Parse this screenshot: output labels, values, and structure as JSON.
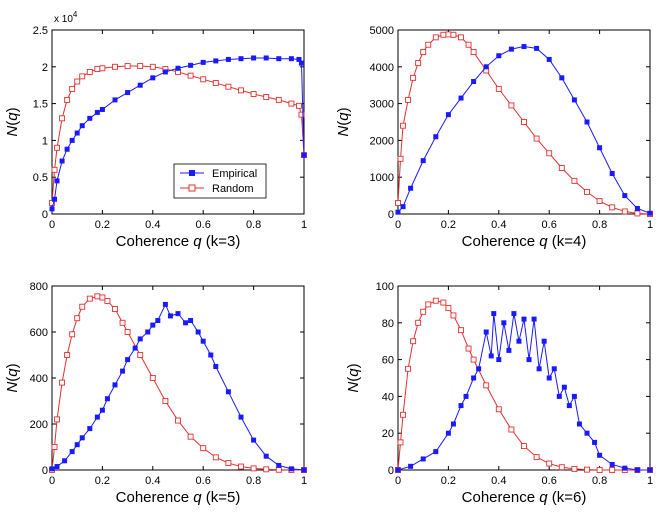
{
  "chart_data": [
    {
      "type": "line",
      "id": "k3",
      "xlabel_prefix": "Coherence ",
      "xlabel_var": "q",
      "xlabel_suffix": " (k=3)",
      "ylabel_prefix": "N(",
      "ylabel_var": "q",
      "ylabel_suffix": ")",
      "xlim": [
        0,
        1
      ],
      "ylim": [
        0,
        2.5
      ],
      "xticks": [
        "0",
        "0.2",
        "0.4",
        "0.6",
        "0.8",
        "1"
      ],
      "yticks": [
        "0",
        "0.5",
        "1",
        "1.5",
        "2",
        "2.5"
      ],
      "yscale_label_base": "x 10",
      "yscale_label_exp": "4",
      "legend": {
        "position": "bottom-right",
        "entries": [
          "Empirical",
          "Random"
        ]
      },
      "series": [
        {
          "name": "Empirical",
          "color": "#1a1aff",
          "marker": "filled-square",
          "x": [
            0,
            0.01,
            0.02,
            0.04,
            0.06,
            0.08,
            0.1,
            0.12,
            0.15,
            0.18,
            0.2,
            0.25,
            0.3,
            0.35,
            0.4,
            0.45,
            0.5,
            0.55,
            0.6,
            0.65,
            0.7,
            0.75,
            0.8,
            0.85,
            0.9,
            0.95,
            0.98,
            0.99,
            1.0
          ],
          "y": [
            0.07,
            0.2,
            0.45,
            0.72,
            0.88,
            1.0,
            1.1,
            1.2,
            1.3,
            1.38,
            1.42,
            1.55,
            1.65,
            1.75,
            1.85,
            1.93,
            1.98,
            2.02,
            2.06,
            2.08,
            2.1,
            2.11,
            2.12,
            2.12,
            2.11,
            2.11,
            2.1,
            2.05,
            0.8
          ]
        },
        {
          "name": "Random",
          "color": "#e03030",
          "marker": "open-square",
          "x": [
            0,
            0.01,
            0.02,
            0.04,
            0.06,
            0.08,
            0.1,
            0.12,
            0.15,
            0.18,
            0.2,
            0.25,
            0.3,
            0.35,
            0.4,
            0.45,
            0.5,
            0.55,
            0.6,
            0.65,
            0.7,
            0.75,
            0.8,
            0.85,
            0.9,
            0.95,
            0.98,
            0.99,
            1.0
          ],
          "y": [
            0.15,
            0.6,
            0.9,
            1.3,
            1.55,
            1.7,
            1.8,
            1.87,
            1.93,
            1.97,
            1.98,
            2.0,
            2.01,
            2.01,
            2.0,
            1.97,
            1.93,
            1.88,
            1.83,
            1.78,
            1.73,
            1.68,
            1.63,
            1.59,
            1.55,
            1.5,
            1.47,
            1.35,
            0.8
          ]
        }
      ]
    },
    {
      "type": "line",
      "id": "k4",
      "xlabel_prefix": "Coherence ",
      "xlabel_var": "q",
      "xlabel_suffix": " (k=4)",
      "ylabel_prefix": "N(",
      "ylabel_var": "q",
      "ylabel_suffix": ")",
      "xlim": [
        0,
        1
      ],
      "ylim": [
        0,
        5000
      ],
      "xticks": [
        "0",
        "0.2",
        "0.4",
        "0.6",
        "0.8",
        "1"
      ],
      "yticks": [
        "0",
        "1000",
        "2000",
        "3000",
        "4000",
        "5000"
      ],
      "series": [
        {
          "name": "Empirical",
          "color": "#1a1aff",
          "marker": "filled-square",
          "x": [
            0,
            0.02,
            0.05,
            0.1,
            0.15,
            0.2,
            0.25,
            0.3,
            0.35,
            0.4,
            0.45,
            0.5,
            0.55,
            0.6,
            0.65,
            0.7,
            0.75,
            0.8,
            0.85,
            0.9,
            0.95,
            1.0
          ],
          "y": [
            50,
            200,
            700,
            1450,
            2100,
            2700,
            3150,
            3600,
            4000,
            4300,
            4480,
            4550,
            4500,
            4200,
            3700,
            3100,
            2500,
            1800,
            1100,
            500,
            150,
            20
          ]
        },
        {
          "name": "Random",
          "color": "#e03030",
          "marker": "open-square",
          "x": [
            0,
            0.01,
            0.02,
            0.04,
            0.06,
            0.08,
            0.1,
            0.12,
            0.15,
            0.18,
            0.2,
            0.22,
            0.25,
            0.28,
            0.3,
            0.35,
            0.4,
            0.45,
            0.5,
            0.55,
            0.6,
            0.65,
            0.7,
            0.75,
            0.8,
            0.85,
            0.9,
            0.95,
            1.0
          ],
          "y": [
            300,
            1500,
            2400,
            3100,
            3700,
            4100,
            4400,
            4600,
            4800,
            4870,
            4880,
            4870,
            4800,
            4600,
            4400,
            3900,
            3400,
            2950,
            2500,
            2050,
            1650,
            1250,
            900,
            600,
            350,
            180,
            70,
            15,
            0
          ]
        }
      ]
    },
    {
      "type": "line",
      "id": "k5",
      "xlabel_prefix": "Coherence ",
      "xlabel_var": "q",
      "xlabel_suffix": " (k=5)",
      "ylabel_prefix": "N(",
      "ylabel_var": "q",
      "ylabel_suffix": ")",
      "xlim": [
        0,
        1
      ],
      "ylim": [
        0,
        800
      ],
      "xticks": [
        "0",
        "0.2",
        "0.4",
        "0.6",
        "0.8",
        "1"
      ],
      "yticks": [
        "0",
        "200",
        "400",
        "600",
        "800"
      ],
      "series": [
        {
          "name": "Empirical",
          "color": "#1a1aff",
          "marker": "filled-square",
          "x": [
            0,
            0.02,
            0.05,
            0.08,
            0.1,
            0.12,
            0.15,
            0.18,
            0.2,
            0.22,
            0.25,
            0.28,
            0.3,
            0.33,
            0.35,
            0.38,
            0.4,
            0.42,
            0.45,
            0.47,
            0.5,
            0.53,
            0.55,
            0.58,
            0.6,
            0.63,
            0.65,
            0.7,
            0.75,
            0.8,
            0.85,
            0.9,
            0.95,
            1.0
          ],
          "y": [
            5,
            15,
            40,
            80,
            110,
            140,
            180,
            230,
            260,
            310,
            370,
            430,
            480,
            530,
            570,
            600,
            630,
            650,
            720,
            670,
            680,
            640,
            650,
            600,
            560,
            500,
            450,
            340,
            230,
            130,
            60,
            20,
            5,
            0
          ]
        },
        {
          "name": "Random",
          "color": "#e03030",
          "marker": "open-square",
          "x": [
            0,
            0.01,
            0.02,
            0.04,
            0.06,
            0.08,
            0.1,
            0.12,
            0.15,
            0.18,
            0.2,
            0.22,
            0.25,
            0.28,
            0.3,
            0.35,
            0.4,
            0.45,
            0.5,
            0.55,
            0.6,
            0.65,
            0.7,
            0.75,
            0.8,
            0.85,
            0.9,
            0.95,
            1.0
          ],
          "y": [
            0,
            100,
            220,
            380,
            500,
            590,
            660,
            710,
            745,
            755,
            750,
            735,
            700,
            640,
            600,
            500,
            400,
            300,
            215,
            145,
            95,
            55,
            30,
            15,
            7,
            3,
            1,
            0,
            0
          ]
        }
      ]
    },
    {
      "type": "line",
      "id": "k6",
      "xlabel_prefix": "Coherence ",
      "xlabel_var": "q",
      "xlabel_suffix": " (k=6)",
      "ylabel_prefix": "N(",
      "ylabel_var": "q",
      "ylabel_suffix": ")",
      "xlim": [
        0,
        1
      ],
      "ylim": [
        0,
        100
      ],
      "xticks": [
        "0",
        "0.2",
        "0.4",
        "0.6",
        "0.8",
        "1"
      ],
      "yticks": [
        "0",
        "20",
        "40",
        "60",
        "80",
        "100"
      ],
      "series": [
        {
          "name": "Empirical",
          "color": "#1a1aff",
          "marker": "filled-square",
          "x": [
            0,
            0.05,
            0.1,
            0.15,
            0.2,
            0.22,
            0.25,
            0.27,
            0.3,
            0.32,
            0.35,
            0.37,
            0.38,
            0.4,
            0.42,
            0.44,
            0.46,
            0.48,
            0.5,
            0.52,
            0.54,
            0.56,
            0.58,
            0.6,
            0.62,
            0.64,
            0.66,
            0.68,
            0.7,
            0.72,
            0.75,
            0.78,
            0.8,
            0.85,
            0.9,
            0.95,
            1.0
          ],
          "y": [
            0,
            2,
            6,
            10,
            20,
            25,
            35,
            40,
            50,
            55,
            75,
            62,
            85,
            60,
            80,
            65,
            85,
            70,
            82,
            60,
            82,
            55,
            70,
            50,
            55,
            40,
            45,
            35,
            40,
            25,
            20,
            15,
            8,
            3,
            1,
            0,
            0
          ]
        },
        {
          "name": "Random",
          "color": "#e03030",
          "marker": "open-square",
          "x": [
            0,
            0.01,
            0.02,
            0.04,
            0.06,
            0.08,
            0.1,
            0.12,
            0.15,
            0.18,
            0.2,
            0.22,
            0.25,
            0.28,
            0.3,
            0.35,
            0.4,
            0.45,
            0.5,
            0.55,
            0.6,
            0.65,
            0.7,
            0.75,
            0.8,
            0.85,
            0.9,
            0.95,
            1.0
          ],
          "y": [
            0,
            15,
            30,
            55,
            70,
            80,
            86,
            90,
            92,
            91,
            88,
            84,
            76,
            66,
            60,
            46,
            33,
            22,
            13,
            7,
            3.5,
            1.5,
            0.6,
            0.2,
            0,
            0,
            0,
            0,
            0
          ]
        }
      ]
    }
  ]
}
